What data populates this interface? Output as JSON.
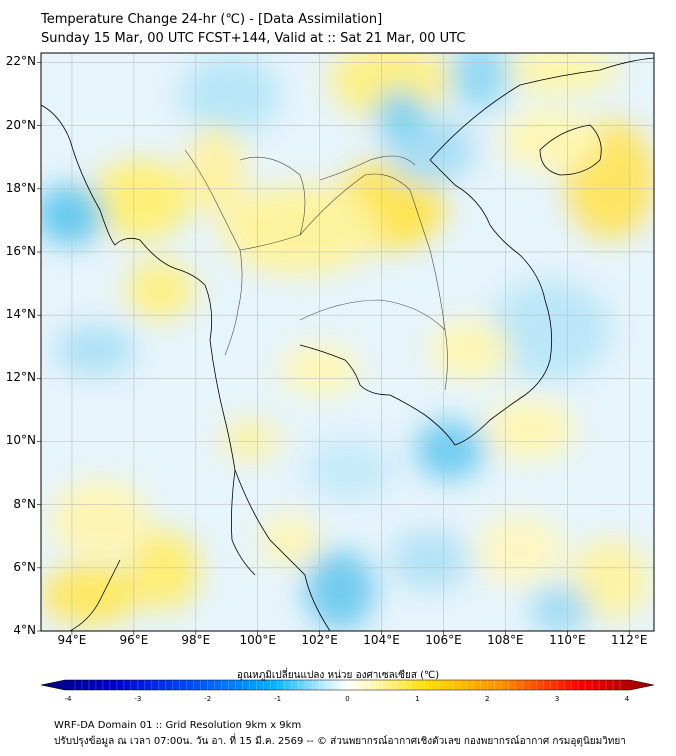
{
  "title": {
    "line1": "Temperature Change 24-hr (℃) - [Data Assimilation]",
    "line2": "Sunday 15 Mar, 00 UTC FCST+144, Valid at :: Sat 21 Mar, 00 UTC"
  },
  "map": {
    "lat_labels": [
      "22°N",
      "20°N",
      "18°N",
      "16°N",
      "14°N",
      "12°N",
      "10°N",
      "8°N",
      "6°N",
      "4°N"
    ],
    "lon_labels": [
      "94°E",
      "96°E",
      "98°E",
      "100°E",
      "102°E",
      "104°E",
      "106°E",
      "108°E",
      "110°E",
      "112°E"
    ],
    "lat_range": [
      4,
      22.3
    ],
    "lon_range": [
      93,
      112.8
    ]
  },
  "colorbar": {
    "title": "อุณหภูมิเปลี่ยนแปลง หน่วย องศาเซลเซียส (℃)",
    "ticks": [
      "-4",
      "-3",
      "-2",
      "-1",
      "0",
      "1",
      "2",
      "3",
      "4"
    ],
    "range": [
      -4,
      4
    ],
    "colors": [
      "#00007a",
      "#0000cd",
      "#0050ff",
      "#00b4ff",
      "#7ee0ff",
      "#ffffff",
      "#fff5a0",
      "#ffd000",
      "#ff8000",
      "#ff0000",
      "#8b0000"
    ]
  },
  "footer": {
    "line1": "WRF-DA Domain 01 :: Grid Resolution 9km x 9km",
    "line2": "ปรับปรุงข้อมูล ณ เวลา 07:00น. วัน อา. ที่ 15 มี.ค. 2569 -- © ส่วนพยากรณ์อากาศเชิงตัวเลข กองพยากรณ์อากาศ กรมอุตุนิยมวิทยา"
  }
}
